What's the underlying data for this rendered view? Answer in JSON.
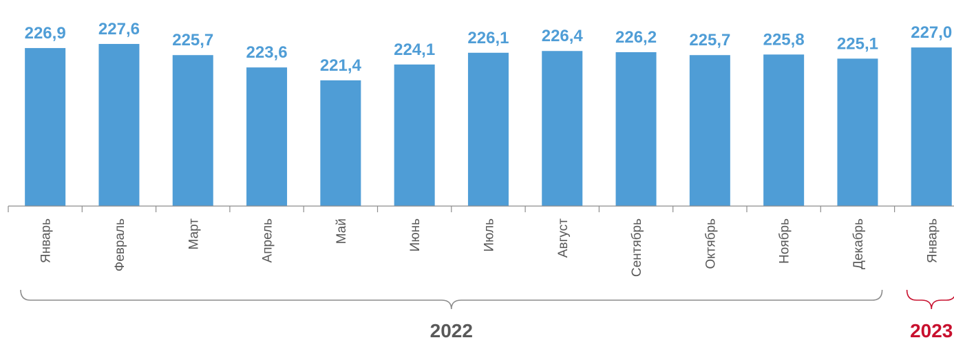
{
  "chart_data": {
    "type": "bar",
    "categories": [
      "Январь",
      "Февраль",
      "Март",
      "Апрель",
      "Май",
      "Июнь",
      "Июль",
      "Август",
      "Сентябрь",
      "Октябрь",
      "Ноябрь",
      "Декабрь",
      "Январь"
    ],
    "values": [
      226.9,
      227.6,
      225.7,
      223.6,
      221.4,
      224.1,
      226.1,
      226.4,
      226.2,
      225.7,
      225.8,
      225.1,
      227.0
    ],
    "value_labels": [
      "226,9",
      "227,6",
      "225,7",
      "223,6",
      "221,4",
      "224,1",
      "226,1",
      "226,4",
      "226,2",
      "225,7",
      "225,8",
      "225,1",
      "227,0"
    ],
    "groups": [
      {
        "label": "2022",
        "from": 0,
        "to": 11,
        "color": "#595959"
      },
      {
        "label": "2023",
        "from": 12,
        "to": 12,
        "color": "#c8102e"
      }
    ],
    "ylim": [
      200,
      229
    ],
    "bar_color": "#4f9dd6",
    "grid": false,
    "title": "",
    "xlabel": "",
    "ylabel": ""
  }
}
